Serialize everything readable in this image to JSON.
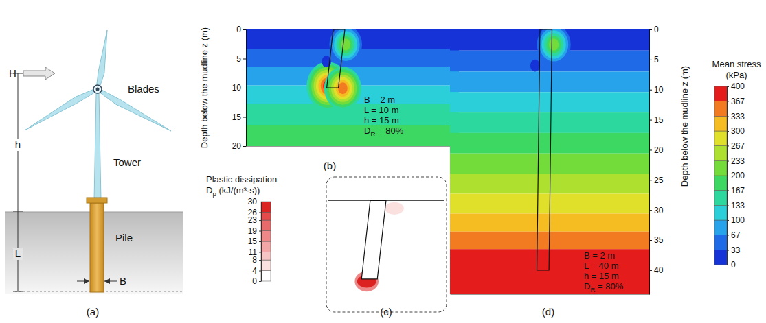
{
  "chart_data": [
    {
      "type": "diagram",
      "title": "(a)",
      "labels": {
        "load": "H",
        "height": "h",
        "embedment": "L",
        "diameter": "B",
        "blades": "Blades",
        "tower": "Tower",
        "pile": "Pile"
      }
    },
    {
      "type": "contour",
      "title": "(b)",
      "ylabel": "Depth below the mudline z (m)",
      "xlim": [
        -15.4,
        21.1
      ],
      "ylim": [
        0,
        20
      ],
      "yticks": [
        0,
        5,
        10,
        15,
        20
      ],
      "tick_labels": "y",
      "annotations": [
        {
          "text": "B = 2 m"
        },
        {
          "text": "L = 10 m"
        },
        {
          "text": "h = 15 m"
        },
        {
          "text": "D",
          "subscript": "R",
          "after": " = 80%"
        }
      ],
      "pile": {
        "width": 2,
        "length": 10,
        "x_head": 0.55,
        "x_tip": -0.55
      },
      "isolines": {
        "stress": [
          33,
          67,
          100,
          133,
          167
        ],
        "depth": [
          3.3,
          6.4,
          9.6,
          12.8,
          16.4
        ]
      },
      "hotspots": [
        {
          "x": -1.4,
          "z": 9.7,
          "stress": 400
        },
        {
          "x": 1.2,
          "z": 10.1,
          "stress": 367
        },
        {
          "x": 1.7,
          "z": 2.6,
          "stress": 233
        },
        {
          "x": -1.6,
          "z": 5.5,
          "stress": 33
        }
      ]
    },
    {
      "type": "contour",
      "title": "(c)",
      "xlim": [
        -6,
        9.2
      ],
      "ylim": [
        -3,
        14.2
      ],
      "tick_labels": false,
      "pile": {
        "width": 2,
        "length": 10,
        "x_head": 0.55,
        "x_tip": -0.55
      },
      "zones": [
        {
          "x": 2.6,
          "z": 1.0,
          "value": 8
        },
        {
          "x": -0.9,
          "z": 10.3,
          "value": 30
        }
      ],
      "colorbar": {
        "title": [
          {
            "text": "Plastic dissipation"
          },
          {
            "text": "D",
            "subscript": "p",
            "after": " (kJ/(m³·s))"
          }
        ],
        "lim": [
          0,
          30
        ],
        "ticks": [
          0,
          4,
          8,
          11,
          15,
          19,
          23,
          26,
          30
        ],
        "colors": [
          "#ffffff",
          "#fbe0e0",
          "#f7c4c4",
          "#f3a6a6",
          "#ee8888",
          "#e96a6a",
          "#e44a4a",
          "#dd2222"
        ]
      }
    },
    {
      "type": "contour",
      "title": "(d)",
      "ylabel": "Depth below the mudline z (m)",
      "xlim": [
        -15.6,
        17.4
      ],
      "ylim": [
        0,
        44
      ],
      "yticks": [
        0,
        5,
        10,
        15,
        20,
        25,
        30,
        35,
        40
      ],
      "tick_labels": "y",
      "annotations": [
        {
          "text": "B = 2 m"
        },
        {
          "text": "L = 40 m"
        },
        {
          "text": "h = 15 m"
        },
        {
          "text": "D",
          "subscript": "R",
          "after": " = 80%"
        }
      ],
      "pile": {
        "width": 2,
        "length": 40,
        "x_head": 0.3,
        "x_tip": -0.2
      },
      "isolines": {
        "stress": [
          33,
          67,
          100,
          133,
          167,
          200,
          233,
          267,
          300,
          333,
          367
        ],
        "depth": [
          3.5,
          7.0,
          10.4,
          13.8,
          17.2,
          20.6,
          24.0,
          27.3,
          30.6,
          33.6,
          36.5
        ]
      },
      "hotspots": [
        {
          "x": 1.6,
          "z": 2.5,
          "stress": 233
        },
        {
          "x": -1.5,
          "z": 6.0,
          "stress": 33
        }
      ],
      "colorbar": {
        "title": [
          {
            "text": "Mean stress"
          },
          {
            "text": "(kPa)"
          }
        ],
        "lim": [
          0,
          400
        ],
        "ticks": [
          0,
          33,
          67,
          100,
          133,
          167,
          200,
          233,
          267,
          300,
          333,
          367,
          400
        ],
        "colors": [
          "#1533d6",
          "#1f6ae6",
          "#26a3ea",
          "#2bcfd9",
          "#2dd89e",
          "#3dd862",
          "#74dc3a",
          "#aee030",
          "#e0e02a",
          "#f5bd22",
          "#f27a20",
          "#e41c1c"
        ]
      }
    }
  ]
}
